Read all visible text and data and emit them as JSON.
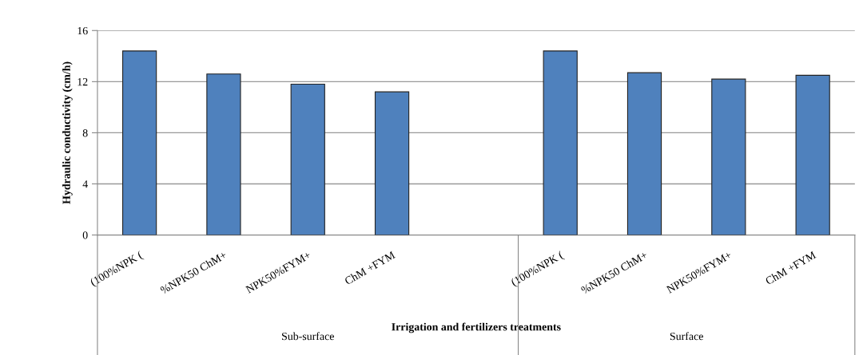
{
  "chart_data": {
    "type": "bar",
    "xlabel": "Irrigation and fertilizers treatments",
    "ylabel": "Hydraulic conductivity (cm/h)",
    "categories": [
      "(100%NPK (",
      "%NPK50 ChM+",
      "NPK50%FYM+",
      "ChM +FYM",
      null,
      "(100%NPK (",
      "%NPK50 ChM+",
      "NPK50%FYM+",
      "ChM +FYM"
    ],
    "values": [
      14.4,
      12.6,
      11.8,
      11.2,
      null,
      14.4,
      12.7,
      12.2,
      12.5
    ],
    "color": "#4f81bd",
    "ylim": [
      0,
      16
    ],
    "yticks": [
      0,
      4,
      8,
      12,
      16
    ],
    "grid": "y",
    "annotations": [
      "Sub-surface",
      "Surface"
    ]
  }
}
